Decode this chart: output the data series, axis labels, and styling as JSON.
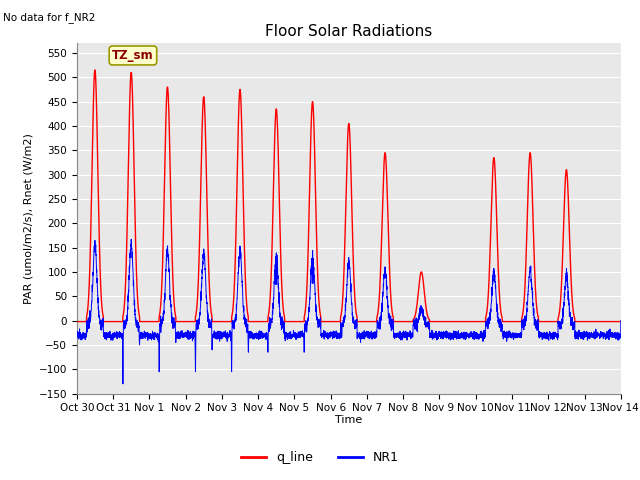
{
  "title": "Floor Solar Radiations",
  "subtitle": "No data for f_NR2",
  "ylabel": "PAR (umol/m2/s), Rnet (W/m2)",
  "xlabel": "Time",
  "ylim": [
    -150,
    570
  ],
  "yticks": [
    -150,
    -100,
    -50,
    0,
    50,
    100,
    150,
    200,
    250,
    300,
    350,
    400,
    450,
    500,
    550
  ],
  "xtick_labels": [
    "Oct 30",
    "Oct 31",
    "Nov 1",
    "Nov 2",
    "Nov 3",
    "Nov 4",
    "Nov 5",
    "Nov 6",
    "Nov 7",
    "Nov 8",
    "Nov 9",
    "Nov 10",
    "Nov 11",
    "Nov 12",
    "Nov 13",
    "Nov 14"
  ],
  "q_line_color": "red",
  "NR1_color": "blue",
  "bg_color": "#e8e8e8",
  "legend_label_q": "q_line",
  "legend_label_nr1": "NR1",
  "annotation_text": "TZ_sm",
  "title_fontsize": 11,
  "label_fontsize": 8,
  "tick_fontsize": 7.5,
  "peak_heights": [
    515,
    510,
    480,
    460,
    475,
    435,
    450,
    405,
    345,
    100,
    0,
    335,
    345,
    310,
    0
  ],
  "nr1_night_base": -30,
  "nr1_scale": 0.32
}
